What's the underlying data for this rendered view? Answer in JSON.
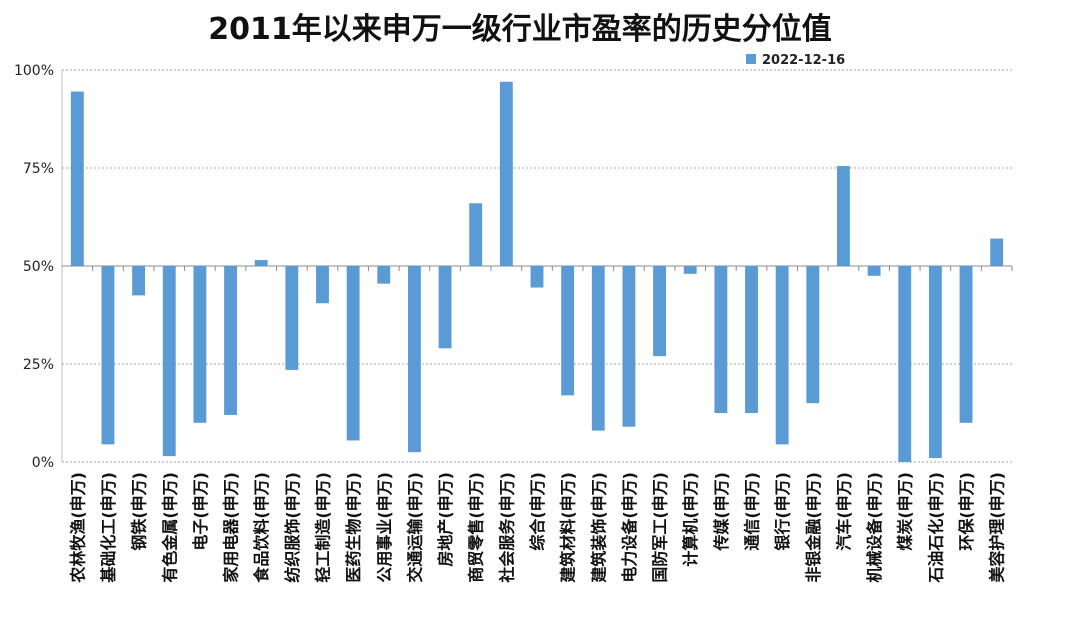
{
  "chart_data": {
    "type": "bar",
    "title": "2011年以来申万一级行业市盈率的历史分位值",
    "xlabel": "",
    "ylabel": "",
    "ylim": [
      0,
      100
    ],
    "yticks": [
      "0%",
      "25%",
      "50%",
      "75%",
      "100%"
    ],
    "ytick_values": [
      0,
      25,
      50,
      75,
      100
    ],
    "baseline": 50,
    "grid": true,
    "legend_position": "top-right",
    "series": [
      {
        "name": "2022-12-16",
        "color": "#5b9bd5",
        "values": [
          94.5,
          4.5,
          42.5,
          1.5,
          10,
          12,
          51.5,
          23.5,
          40.5,
          5.5,
          45.5,
          2.5,
          29,
          66,
          97,
          44.5,
          17,
          8,
          9,
          27,
          48,
          12.5,
          12.5,
          4.5,
          15,
          75.5,
          47.5,
          0,
          1,
          10,
          57
        ]
      }
    ],
    "categories": [
      "农林牧渔(申万)",
      "基础化工(申万)",
      "钢铁(申万)",
      "有色金属(申万)",
      "电子(申万)",
      "家用电器(申万)",
      "食品饮料(申万)",
      "纺织服饰(申万)",
      "轻工制造(申万)",
      "医药生物(申万)",
      "公用事业(申万)",
      "交通运输(申万)",
      "房地产(申万)",
      "商贸零售(申万)",
      "社会服务(申万)",
      "综合(申万)",
      "建筑材料(申万)",
      "建筑装饰(申万)",
      "电力设备(申万)",
      "国防军工(申万)",
      "计算机(申万)",
      "传媒(申万)",
      "通信(申万)",
      "银行(申万)",
      "非银金融(申万)",
      "汽车(申万)",
      "机械设备(申万)",
      "煤炭(申万)",
      "石油石化(申万)",
      "环保(申万)",
      "美容护理(申万)"
    ]
  }
}
